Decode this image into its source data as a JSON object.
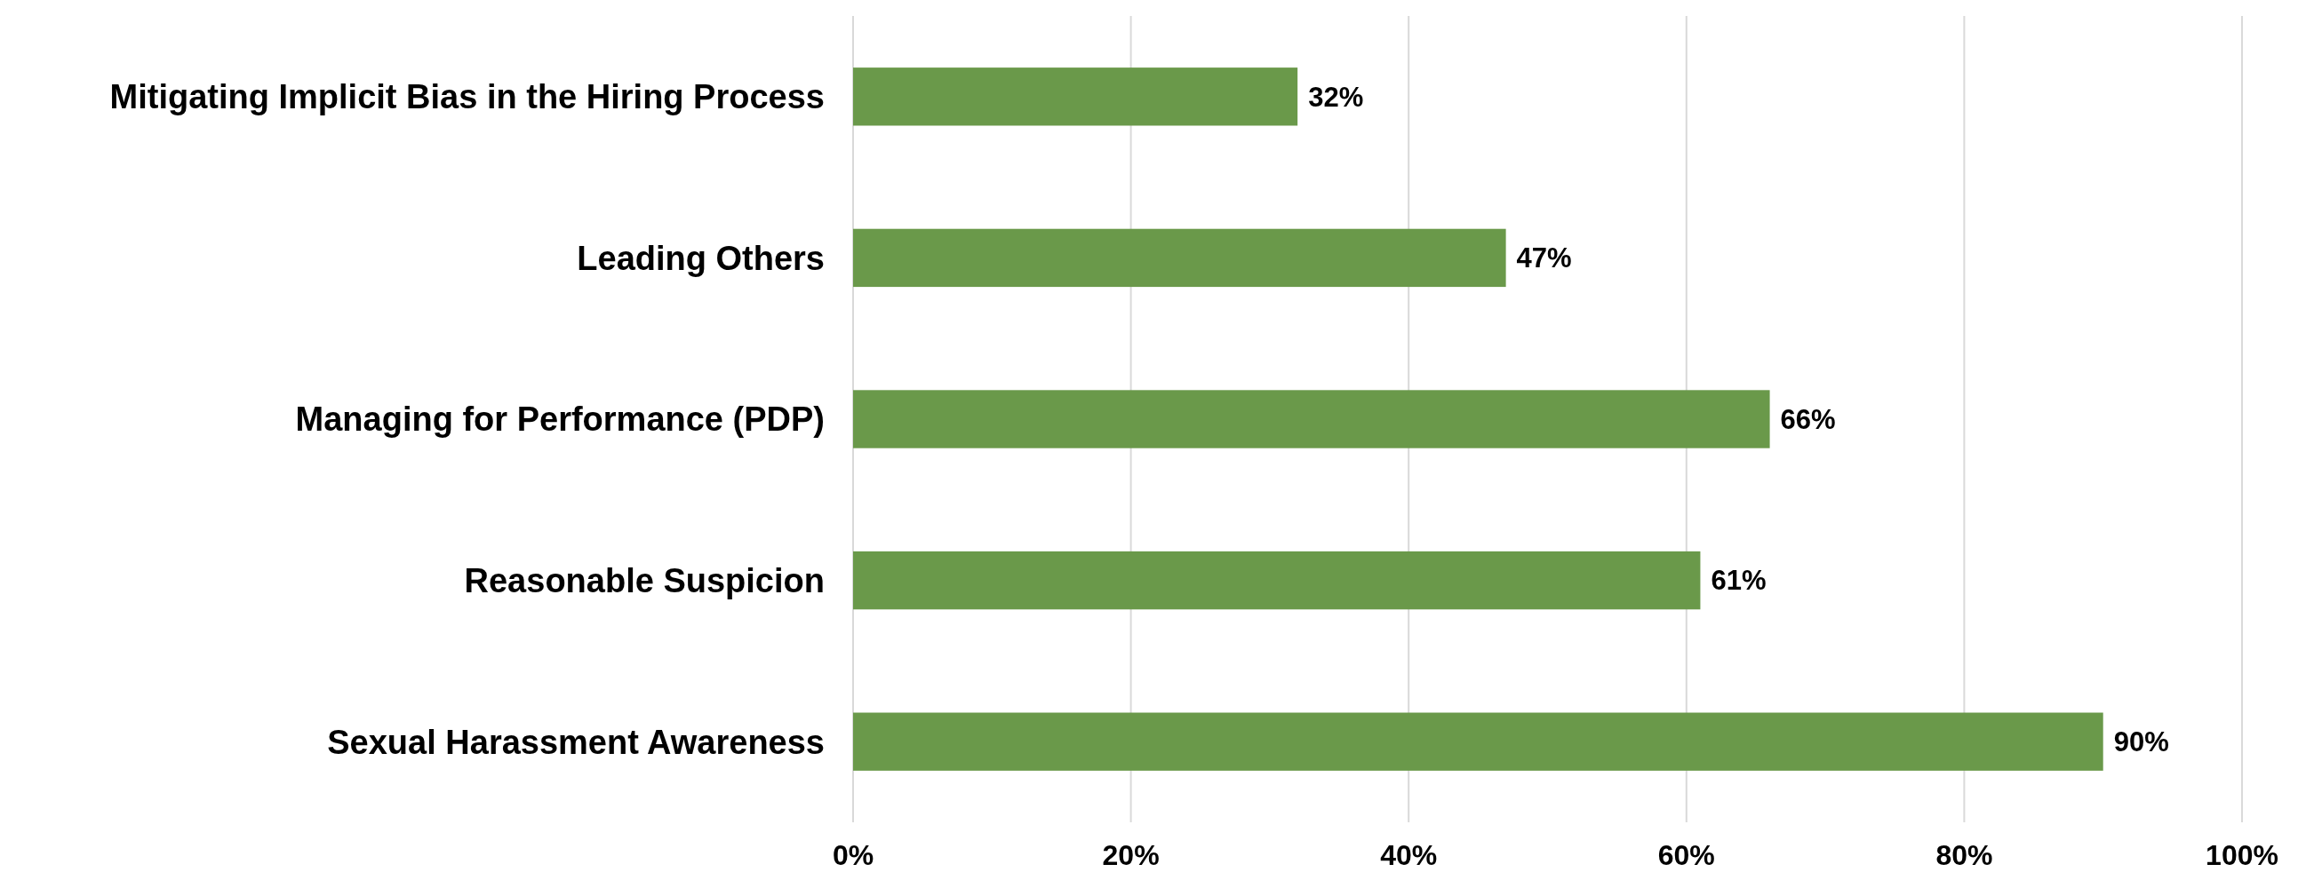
{
  "chart_data": {
    "type": "bar",
    "orientation": "horizontal",
    "categories": [
      "Mitigating Implicit Bias in the Hiring Process",
      "Leading Others",
      "Managing for Performance (PDP)",
      "Reasonable Suspicion",
      "Sexual Harassment Awareness"
    ],
    "values": [
      32,
      47,
      66,
      61,
      90
    ],
    "value_labels": [
      "32%",
      "47%",
      "66%",
      "61%",
      "90%"
    ],
    "color": "#6a994a",
    "xlim": [
      0,
      100
    ],
    "xticks": [
      {
        "value": 0,
        "label": "0%"
      },
      {
        "value": 20,
        "label": "20%"
      },
      {
        "value": 40,
        "label": "40%"
      },
      {
        "value": 60,
        "label": "60%"
      },
      {
        "value": 80,
        "label": "80%"
      },
      {
        "value": 100,
        "label": "100%"
      }
    ],
    "grid": "x"
  }
}
